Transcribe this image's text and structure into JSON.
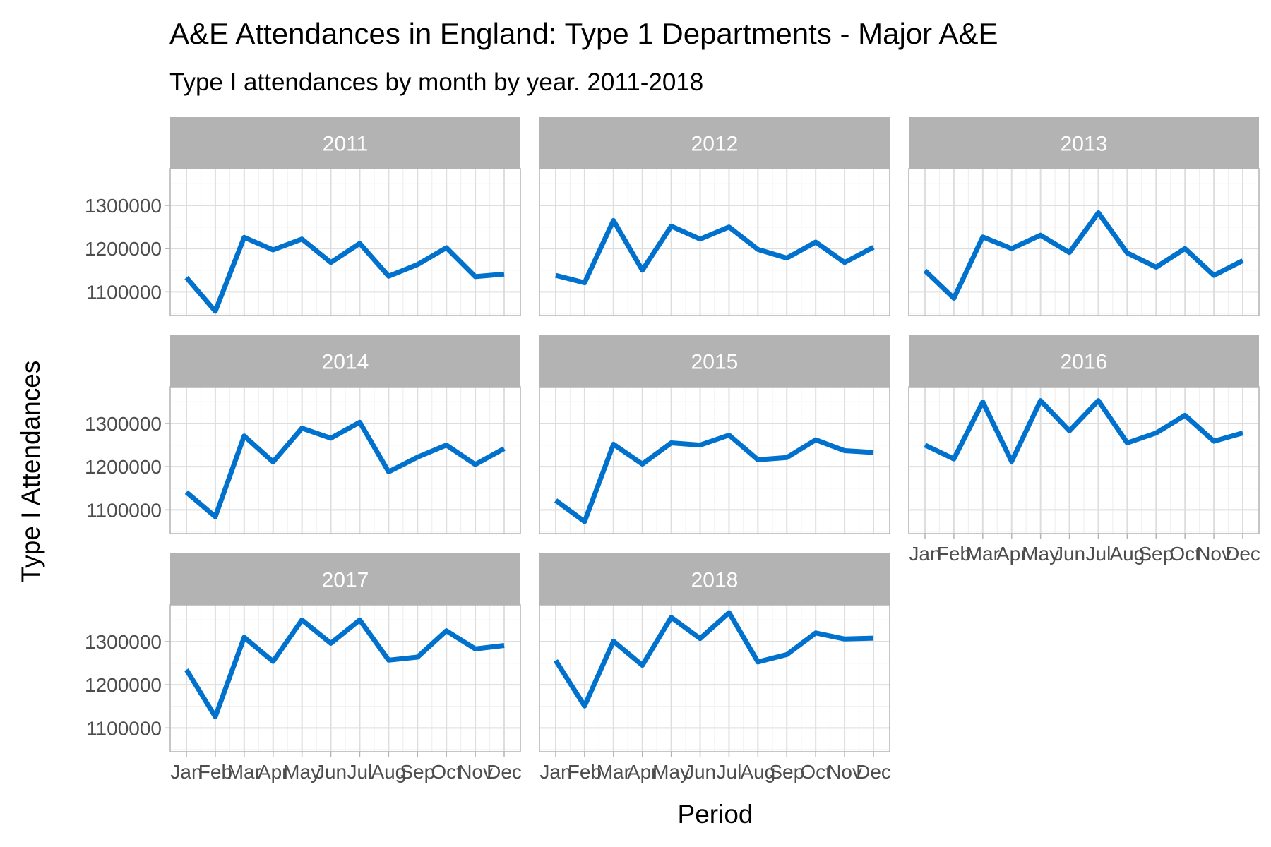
{
  "chart_data": {
    "type": "line",
    "title": "A&E Attendances in England: Type 1 Departments - Major A&E",
    "subtitle": "Type I attendances by month by year. 2011-2018",
    "xlabel": "Period",
    "ylabel": "Type I Attendances",
    "categories": [
      "Jan",
      "Feb",
      "Mar",
      "Apr",
      "May",
      "Jun",
      "Jul",
      "Aug",
      "Sep",
      "Oct",
      "Nov",
      "Dec"
    ],
    "y_ticks": [
      "1100000",
      "1200000",
      "1300000"
    ],
    "ylim": [
      1045000,
      1385000
    ],
    "facet_layout": {
      "columns": 3,
      "rows": 3
    },
    "grid": true,
    "legend": "none",
    "line_color": "#0072ce",
    "strip_color": "#b3b3b3",
    "facets": [
      {
        "label": "2011",
        "values": [
          1133000,
          1055000,
          1226000,
          1197000,
          1222000,
          1168000,
          1212000,
          1136000,
          1163000,
          1202000,
          1135000,
          1141000
        ]
      },
      {
        "label": "2012",
        "values": [
          1138000,
          1121000,
          1265000,
          1150000,
          1252000,
          1222000,
          1250000,
          1198000,
          1178000,
          1215000,
          1168000,
          1203000
        ]
      },
      {
        "label": "2013",
        "values": [
          1149000,
          1085000,
          1227000,
          1200000,
          1231000,
          1191000,
          1283000,
          1190000,
          1157000,
          1200000,
          1138000,
          1172000
        ]
      },
      {
        "label": "2014",
        "values": [
          1141000,
          1084000,
          1271000,
          1211000,
          1289000,
          1266000,
          1303000,
          1188000,
          1222000,
          1250000,
          1205000,
          1242000
        ]
      },
      {
        "label": "2015",
        "values": [
          1122000,
          1073000,
          1252000,
          1206000,
          1255000,
          1250000,
          1273000,
          1216000,
          1221000,
          1262000,
          1237000,
          1233000
        ]
      },
      {
        "label": "2016",
        "values": [
          1250000,
          1218000,
          1350000,
          1212000,
          1353000,
          1283000,
          1353000,
          1255000,
          1278000,
          1319000,
          1259000,
          1278000
        ]
      },
      {
        "label": "2017",
        "values": [
          1235000,
          1126000,
          1310000,
          1254000,
          1350000,
          1296000,
          1350000,
          1257000,
          1264000,
          1325000,
          1283000,
          1291000
        ]
      },
      {
        "label": "2018",
        "values": [
          1256000,
          1151000,
          1301000,
          1245000,
          1356000,
          1307000,
          1367000,
          1253000,
          1270000,
          1320000,
          1306000,
          1308000
        ]
      }
    ]
  }
}
